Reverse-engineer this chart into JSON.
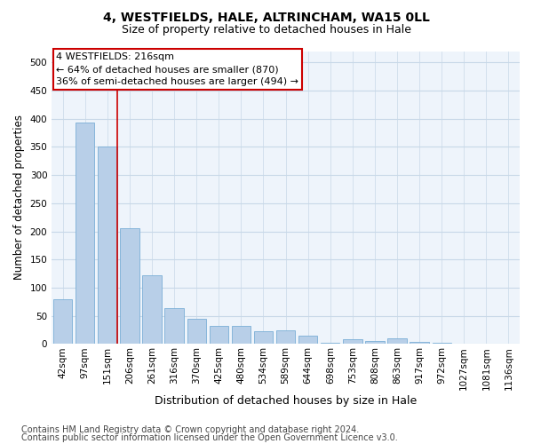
{
  "title": "4, WESTFIELDS, HALE, ALTRINCHAM, WA15 0LL",
  "subtitle": "Size of property relative to detached houses in Hale",
  "xlabel": "Distribution of detached houses by size in Hale",
  "ylabel": "Number of detached properties",
  "bar_values": [
    80,
    393,
    350,
    205,
    122,
    63,
    45,
    32,
    32,
    22,
    25,
    15,
    3,
    9,
    5,
    10,
    4,
    2,
    1,
    1,
    1
  ],
  "bar_labels": [
    "42sqm",
    "97sqm",
    "151sqm",
    "206sqm",
    "261sqm",
    "316sqm",
    "370sqm",
    "425sqm",
    "480sqm",
    "534sqm",
    "589sqm",
    "644sqm",
    "698sqm",
    "753sqm",
    "808sqm",
    "863sqm",
    "917sqm",
    "972sqm",
    "1027sqm",
    "1081sqm",
    "1136sqm"
  ],
  "bar_color": "#b8cfe8",
  "bar_edge_color": "#7aaed6",
  "vline_x_index": 2,
  "annotation_text_line1": "4 WESTFIELDS: 216sqm",
  "annotation_text_line2": "← 64% of detached houses are smaller (870)",
  "annotation_text_line3": "36% of semi-detached houses are larger (494) →",
  "annotation_box_color": "#ffffff",
  "annotation_box_edge_color": "#cc0000",
  "vline_color": "#cc0000",
  "ylim": [
    0,
    520
  ],
  "yticks": [
    0,
    50,
    100,
    150,
    200,
    250,
    300,
    350,
    400,
    450,
    500
  ],
  "grid_color": "#c8d8e8",
  "background_color": "#eef4fb",
  "footer_line1": "Contains HM Land Registry data © Crown copyright and database right 2024.",
  "footer_line2": "Contains public sector information licensed under the Open Government Licence v3.0.",
  "title_fontsize": 10,
  "subtitle_fontsize": 9,
  "xlabel_fontsize": 9,
  "ylabel_fontsize": 8.5,
  "tick_fontsize": 7.5,
  "footer_fontsize": 7
}
